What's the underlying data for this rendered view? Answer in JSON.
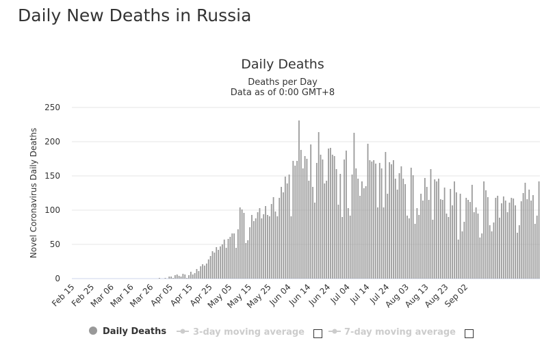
{
  "page": {
    "title": "Daily New Deaths in Russia"
  },
  "colors": {
    "bar": "#999999",
    "grid": "#e6e6e6",
    "legend_inactive": "#cccccc",
    "text": "#333333"
  },
  "chart_data": {
    "type": "bar",
    "title": "Daily Deaths",
    "subtitle_line1": "Deaths per Day",
    "subtitle_line2": "Data as of 0:00 GMT+8",
    "ylabel": "Novel Coronavirus Daily Deaths",
    "xlabel": "",
    "ylim": [
      0,
      250
    ],
    "yticks": [
      0,
      50,
      100,
      150,
      200,
      250
    ],
    "grid": true,
    "start_date": "Feb 15",
    "xticks": [
      "Feb 15",
      "Feb 25",
      "Mar 06",
      "Mar 16",
      "Mar 26",
      "Apr 05",
      "Apr 15",
      "Apr 25",
      "May 05",
      "May 15",
      "May 25",
      "Jun 04",
      "Jun 14",
      "Jun 24",
      "Jul 04",
      "Jul 14",
      "Jul 24",
      "Aug 03",
      "Aug 13",
      "Aug 23",
      "Sep 02"
    ],
    "series": [
      {
        "name": "Daily Deaths",
        "values": [
          0,
          0,
          0,
          0,
          0,
          0,
          0,
          0,
          0,
          0,
          0,
          0,
          0,
          0,
          0,
          0,
          0,
          0,
          0,
          0,
          0,
          0,
          0,
          0,
          0,
          0,
          0,
          0,
          0,
          0,
          0,
          0,
          0,
          0,
          0,
          0,
          0,
          0,
          0,
          0,
          0,
          0,
          0,
          0,
          1,
          0,
          0,
          1,
          0,
          3,
          3,
          1,
          5,
          6,
          4,
          3,
          7,
          6,
          1,
          5,
          10,
          6,
          8,
          14,
          11,
          18,
          21,
          19,
          22,
          28,
          33,
          40,
          38,
          46,
          42,
          47,
          50,
          57,
          45,
          58,
          61,
          66,
          66,
          45,
          72,
          104,
          101,
          96,
          52,
          56,
          75,
          93,
          84,
          88,
          97,
          103,
          88,
          94,
          106,
          93,
          91,
          109,
          119,
          98,
          91,
          118,
          134,
          126,
          149,
          139,
          152,
          91,
          172,
          165,
          172,
          231,
          188,
          161,
          179,
          175,
          143,
          196,
          134,
          111,
          169,
          214,
          181,
          174,
          139,
          143,
          190,
          191,
          181,
          179,
          160,
          108,
          153,
          90,
          174,
          187,
          103,
          92,
          152,
          213,
          161,
          146,
          121,
          142,
          132,
          135,
          197,
          173,
          171,
          173,
          168,
          104,
          169,
          161,
          104,
          185,
          124,
          170,
          167,
          173,
          146,
          130,
          154,
          164,
          146,
          138,
          92,
          88,
          162,
          151,
          80,
          103,
          93,
          124,
          114,
          147,
          134,
          115,
          160,
          86,
          145,
          142,
          146,
          116,
          115,
          133,
          95,
          90,
          131,
          107,
          142,
          126,
          57,
          124,
          69,
          83,
          118,
          115,
          112,
          137,
          97,
          104,
          95,
          60,
          66,
          142,
          129,
          119,
          78,
          69,
          82,
          118,
          121,
          89,
          110,
          120,
          114,
          97,
          111,
          118,
          117,
          107,
          67,
          78,
          113,
          125,
          140,
          116,
          130,
          114,
          122,
          80,
          92,
          142
        ]
      },
      {
        "name": "3-day moving average",
        "values": []
      },
      {
        "name": "7-day moving average",
        "values": []
      }
    ],
    "legend_placement": "bottom"
  }
}
